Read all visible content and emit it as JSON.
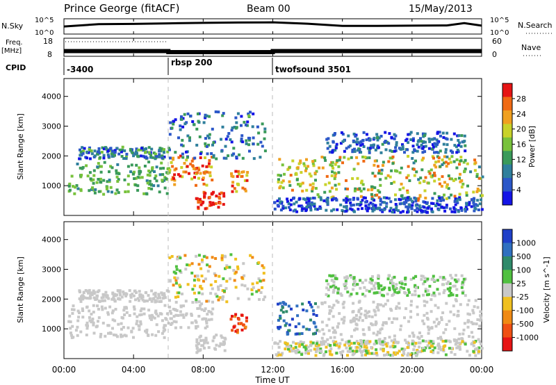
{
  "header": {
    "station": "Prince George (fitACF)",
    "beam": "Beam 00",
    "date": "15/May/2013"
  },
  "colors": {
    "power_scale": [
      "#1414e6",
      "#2b57c8",
      "#2f7f9c",
      "#3a9a5a",
      "#78c23c",
      "#c8d22a",
      "#f0a020",
      "#f06a14",
      "#e61414"
    ],
    "velocity_scale": [
      "#2040c8",
      "#3070c0",
      "#2f8a6a",
      "#50c040",
      "#c8c8c8",
      "#f0c020",
      "#f08a14",
      "#f05014",
      "#e61414"
    ]
  },
  "chart_data": [
    {
      "type": "line",
      "panel": "sky-noise",
      "left_label": "N.Sky",
      "right_label": "N.Search",
      "left_ticks": [
        "10^5",
        "10^0"
      ],
      "right_ticks": [
        "10^5",
        "10^0"
      ],
      "yscale": "log",
      "ylim": [
        1,
        100000
      ],
      "x": [
        0,
        2,
        4,
        6,
        8,
        10,
        12,
        14,
        16,
        18,
        20,
        22,
        23,
        24
      ],
      "series": [
        {
          "values": [
            300,
            2000,
            2500,
            4000,
            6000,
            8000,
            9000,
            3000,
            500,
            500,
            600,
            700,
            5000,
            600
          ]
        }
      ]
    },
    {
      "type": "line",
      "panel": "frequency-nave",
      "left_label": "Freq.",
      "left_unit": "[MHz]",
      "left_ticks": [
        "18",
        "8"
      ],
      "right_label": "Nave",
      "right_ticks": [
        "60",
        "0"
      ],
      "ylim": [
        8,
        18
      ],
      "x": [
        0,
        6,
        6,
        12,
        12,
        24
      ],
      "series": [
        {
          "values": [
            10.8,
            10.8,
            10.2,
            10.2,
            10.8,
            10.8
          ]
        }
      ]
    },
    {
      "type": "table",
      "panel": "cpid",
      "label": "CPID",
      "segments": [
        {
          "start": 0,
          "end": 6,
          "name": "-3400"
        },
        {
          "start": 6,
          "end": 12,
          "name": "rbsp 200"
        },
        {
          "start": 12,
          "end": 24,
          "name": "twofsound 3501"
        }
      ]
    },
    {
      "type": "heatmap",
      "panel": "power",
      "ylabel": "Slant Range [km]",
      "ylim": [
        0,
        4600
      ],
      "yticks": [
        1000,
        2000,
        3000,
        4000
      ],
      "xlim": [
        0,
        24
      ],
      "colorbar_label": "Power [dB]",
      "colorbar_ticks": [
        4,
        8,
        12,
        16,
        20,
        24,
        28
      ],
      "colorbar_range": [
        0,
        30
      ]
    },
    {
      "type": "heatmap",
      "panel": "velocity",
      "ylabel": "Slant Range [km]",
      "ylim": [
        0,
        4600
      ],
      "yticks": [
        1000,
        2000,
        3000,
        4000
      ],
      "xlim": [
        0,
        24
      ],
      "colorbar_label": "Velocity [m s^-1]",
      "colorbar_ticks": [
        1000,
        500,
        100,
        25,
        -25,
        -100,
        -500,
        -1000
      ]
    }
  ],
  "time_axis": {
    "label": "Time UT",
    "ticks": [
      {
        "t": 0,
        "label": "00:00"
      },
      {
        "t": 4,
        "label": "04:00"
      },
      {
        "t": 8,
        "label": "08:00"
      },
      {
        "t": 12,
        "label": "12:00"
      },
      {
        "t": 16,
        "label": "16:00"
      },
      {
        "t": 20,
        "label": "20:00"
      },
      {
        "t": 24,
        "label": "00:00"
      }
    ]
  }
}
